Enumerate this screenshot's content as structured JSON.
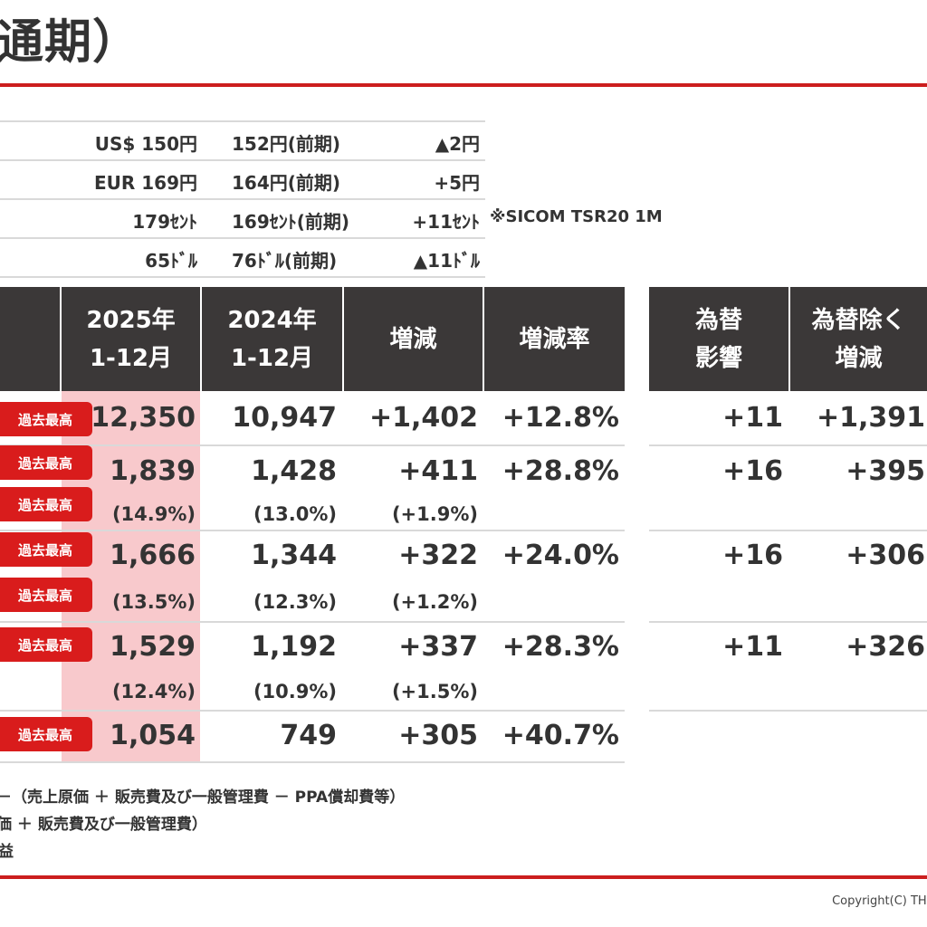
{
  "title": "通期）",
  "rates": [
    {
      "current": "US$ 150円",
      "previous": "152円(前期)",
      "change": "▲2円",
      "note": ""
    },
    {
      "current": "EUR 169円",
      "previous": "164円(前期)",
      "change": "+5円",
      "note": ""
    },
    {
      "current": "179ｾﾝﾄ",
      "previous": "169ｾﾝﾄ(前期)",
      "change": "+11ｾﾝﾄ",
      "note": "※SICOM TSR20 1M"
    },
    {
      "current": "65ﾄﾞﾙ",
      "previous": "76ﾄﾞﾙ(前期)",
      "change": "▲11ﾄﾞﾙ",
      "note": ""
    }
  ],
  "headers": {
    "col_2025": "2025年\n1-12月",
    "col_2024": "2024年\n1-12月",
    "change": "増減",
    "change_rate": "増減率",
    "fx_effect": "為替\n影響",
    "ex_fx_change": "為替除く\n増減"
  },
  "badge_label": "過去最高",
  "rows": [
    {
      "v2025": "12,350",
      "v2024": "10,947",
      "change": "+1,402",
      "rate": "+12.8%",
      "fx": "+11",
      "exfx": "+1,391"
    },
    {
      "v2025": "1,839",
      "v2024": "1,428",
      "change": "+411",
      "rate": "+28.8%",
      "fx": "+16",
      "exfx": "+395",
      "m2025": "(14.9%)",
      "m2024": "(13.0%)",
      "mchange": "(+1.9%)"
    },
    {
      "v2025": "1,666",
      "v2024": "1,344",
      "change": "+322",
      "rate": "+24.0%",
      "fx": "+16",
      "exfx": "+306",
      "m2025": "(13.5%)",
      "m2024": "(12.3%)",
      "mchange": "(+1.2%)"
    },
    {
      "v2025": "1,529",
      "v2024": "1,192",
      "change": "+337",
      "rate": "+28.3%",
      "fx": "+11",
      "exfx": "+326",
      "m2025": "(12.4%)",
      "m2024": "(10.9%)",
      "mchange": "(+1.5%)"
    },
    {
      "v2025": "1,054",
      "v2024": "749",
      "change": "+305",
      "rate": "+40.7%"
    }
  ],
  "notes": [
    "－（売上原価 ＋ 販売費及び一般管理費 － PPA償却費等）",
    "価 ＋ 販売費及び一般管理費）",
    "益"
  ],
  "copyright": "Copyright(C) THE Y"
}
